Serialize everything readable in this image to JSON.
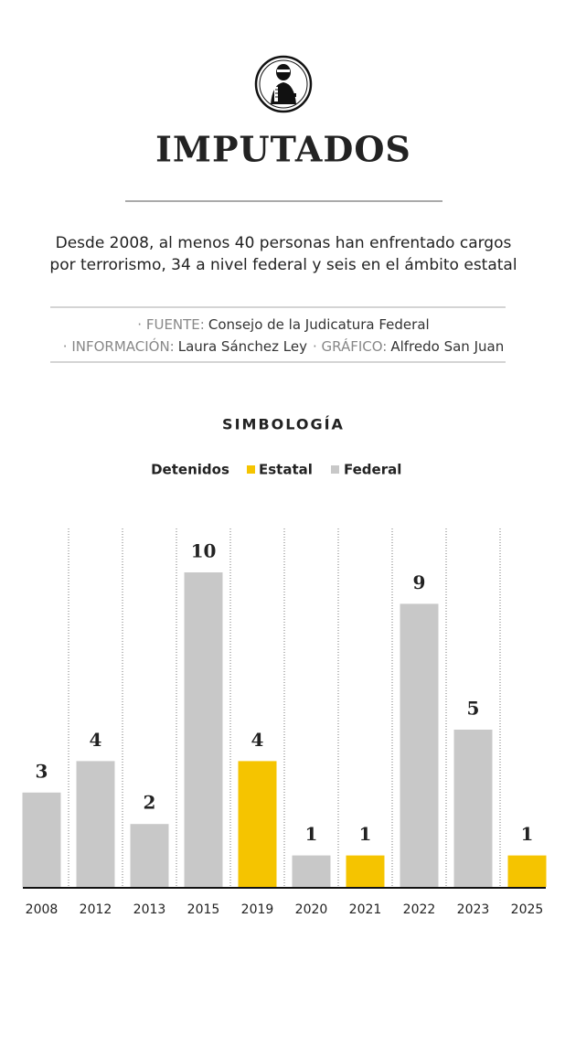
{
  "chart_data": {
    "type": "bar",
    "title": "IMPUTADOS",
    "subtitle": [
      "Desde 2008, al menos 40 personas han enfrentado cargos",
      "por terrorismo, 34 a nivel federal y seis en el ámbito estatal"
    ],
    "credits": [
      [
        {
          "label": "· FUENTE:",
          "text": "Consejo de la Judicatura Federal"
        }
      ],
      [
        {
          "label": "· INFORMACIÓN:",
          "text": "Laura Sánchez Ley"
        },
        {
          "label": "· GRÁFICO:",
          "text": "Alfredo San Juan"
        }
      ]
    ],
    "legend_heading": "SIMBOLOGÍA",
    "legend_title": "Detenidos",
    "categories": [
      "2008",
      "2012",
      "2013",
      "2015",
      "2019",
      "2020",
      "2021",
      "2022",
      "2023",
      "2025"
    ],
    "series": [
      {
        "name": "Estatal",
        "color": "#f5c400",
        "values": [
          null,
          null,
          null,
          null,
          4,
          null,
          1,
          null,
          null,
          1
        ]
      },
      {
        "name": "Federal",
        "color": "#c8c8c8",
        "values": [
          3,
          4,
          2,
          10,
          null,
          1,
          null,
          9,
          5,
          null
        ]
      }
    ]
  }
}
